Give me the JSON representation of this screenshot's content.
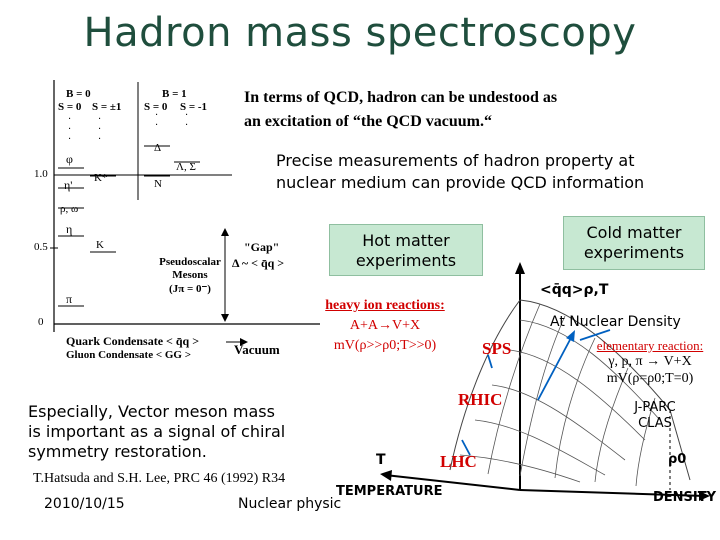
{
  "slide": {
    "title": "Hadron mass spectroscopy",
    "intro_line1": "In terms of QCD, hadron can be undestood as",
    "intro_line2": "an excitation of  “the QCD vacuum.“",
    "precise_line1": "Precise measurements of hadron property at",
    "precise_line2": "nuclear medium can provide QCD information",
    "hot_box": {
      "line1": "Hot matter",
      "line2": "experiments"
    },
    "cold_box": {
      "line1": "Cold matter",
      "line2": "experiments"
    },
    "heavy_ion": {
      "line1": "heavy ion reactions:",
      "line2": "A+A→V+X",
      "line3": "mV(ρ>>ρ0;T>>0)"
    },
    "elementary": {
      "line1": "elementary reaction:",
      "line2": "γ, p, π → V+X",
      "line3": "mV(ρ=ρ0;T=0)"
    },
    "jparc": {
      "line1": "J-PARC",
      "line2": "CLAS"
    },
    "vector_text": {
      "line1": "Especially, Vector meson mass",
      "line2": "is important as a signal of  chiral",
      "line3": "symmetry restoration."
    },
    "reference": "T.Hatsuda and S.H. Lee, PRC 46 (1992) R34",
    "date": "2010/10/15",
    "footer": "Nuclear physics"
  },
  "spectrum": {
    "b0": "B = 0",
    "b1": "B = 1",
    "s0a": "S = 0",
    "s1a": "S = ±1",
    "s0b": "S = 0",
    "sm1": "S = -1",
    "y10": "1.0",
    "y05": "0.5",
    "y0": "0",
    "phi": "φ",
    "kstar": "K*",
    "etap": "η'",
    "rho_omega": "ρ, ω",
    "eta": "η",
    "k": "K",
    "pi": "π",
    "delta": "Δ",
    "lambda_sigma": "Λ, Σ",
    "n": "N",
    "gap1": "\"Gap\"",
    "gap2": "Δ ~ < q̄q >",
    "ps1": "Pseudoscalar",
    "ps2": "Mesons",
    "ps3": "(Jπ = 0⁻)",
    "quark_cond": "Quark Condensate < q̄q >",
    "gluon_cond": "Gluon Condensate < GG >",
    "vacuum": "Vacuum"
  },
  "phase_diagram": {
    "ylabel": "<q̄q>ρ,T",
    "at_nuclear": "At Nuclear Density",
    "sps": "SPS",
    "rhic": "RHIC",
    "lhc": "LHC",
    "temperature": "TEMPERATURE",
    "t": "T",
    "density": "DENSITY",
    "rho0": "ρ0"
  }
}
